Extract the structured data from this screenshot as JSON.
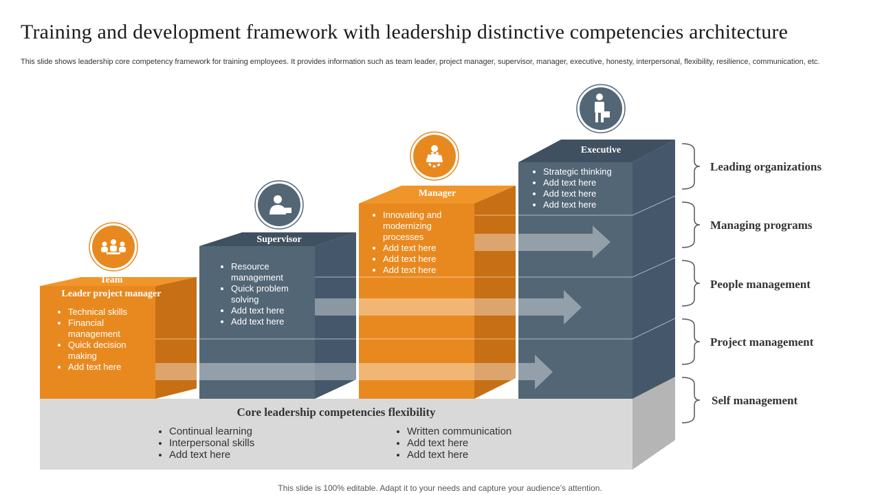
{
  "title": "Training and development framework with leadership distinctive competencies architecture",
  "subtitle": "This slide shows leadership core competency framework for training employees. It provides information such as team leader, project manager, supervisor, manager, executive, honesty, interpersonal, flexibility, resilience, communication, etc.",
  "colors": {
    "orange": "#E8891F",
    "slate": "#536675",
    "gray_base": "#D9D9D9"
  },
  "levels": [
    {
      "title_line1": "Team",
      "title_line2": "Leader project manager",
      "icon": "team-icon",
      "items": [
        "Technical skills",
        "Financial management",
        "Quick decision making",
        "Add text here"
      ]
    },
    {
      "title_line1": "Supervisor",
      "icon": "supervisor-icon",
      "items": [
        "Resource management",
        "Quick problem solving",
        "Add text here",
        "Add text here"
      ]
    },
    {
      "title_line1": "Manager",
      "icon": "manager-gear-icon",
      "items": [
        "Innovating and modernizing processes",
        "Add text here",
        "Add text here",
        "Add text here"
      ]
    },
    {
      "title_line1": "Executive",
      "icon": "executive-briefcase-icon",
      "items": [
        "Strategic thinking",
        "Add text here",
        "Add text here",
        "Add text here"
      ]
    }
  ],
  "base": {
    "title": "Core leadership competencies flexibility",
    "left_items": [
      "Continual learning",
      "Interpersonal skills",
      "Add text here"
    ],
    "right_items": [
      "Written communication",
      "Add text here",
      "Add text here"
    ]
  },
  "side_labels": [
    "Leading organizations",
    "Managing programs",
    "People management",
    "Project management",
    "Self management"
  ],
  "footer": "This slide is 100% editable. Adapt it to your needs and capture your audience’s attention."
}
